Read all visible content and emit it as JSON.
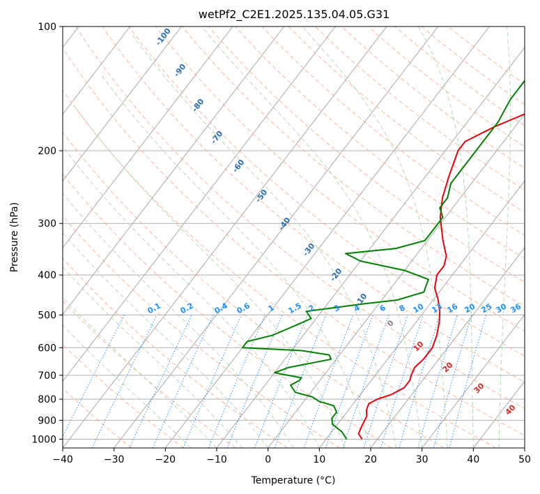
{
  "chart_data": {
    "type": "line",
    "title": "wetPf2_C2E1.2025.135.04.05.G31",
    "xlabel": "Temperature (°C)",
    "ylabel": "Pressure (hPa)",
    "xlim": [
      -40,
      50
    ],
    "ylim": [
      1050,
      100
    ],
    "y_scale": "log",
    "grid": true,
    "x_ticks": [
      -40,
      -30,
      -20,
      -10,
      0,
      10,
      20,
      30,
      40,
      50
    ],
    "y_ticks": [
      100,
      200,
      300,
      400,
      500,
      600,
      700,
      800,
      900,
      1000
    ],
    "series": [
      {
        "color": "#e8000b",
        "points": [
          [
            17,
            1000
          ],
          [
            15.5,
            970
          ],
          [
            15,
            930
          ],
          [
            14.5,
            880
          ],
          [
            13.5,
            850
          ],
          [
            13,
            820
          ],
          [
            14,
            800
          ],
          [
            16,
            780
          ],
          [
            17.5,
            750
          ],
          [
            17.5,
            720
          ],
          [
            17,
            700
          ],
          [
            16.5,
            670
          ],
          [
            17,
            640
          ],
          [
            17,
            600
          ],
          [
            16,
            560
          ],
          [
            14.5,
            520
          ],
          [
            13,
            490
          ],
          [
            11,
            460
          ],
          [
            8.5,
            430
          ],
          [
            7,
            400
          ],
          [
            7,
            380
          ],
          [
            6,
            360
          ],
          [
            3,
            330
          ],
          [
            -1,
            290
          ],
          [
            -3.5,
            260
          ],
          [
            -5.5,
            230
          ],
          [
            -7.5,
            200
          ],
          [
            -7.5,
            190
          ],
          [
            -4,
            175
          ],
          [
            1,
            160
          ],
          [
            6,
            145
          ],
          [
            11,
            130
          ],
          [
            14,
            120
          ],
          [
            16,
            110
          ],
          [
            18,
            100
          ]
        ]
      },
      {
        "color": "#008000",
        "points": [
          [
            14,
            1000
          ],
          [
            12,
            960
          ],
          [
            9,
            920
          ],
          [
            8,
            890
          ],
          [
            8,
            860
          ],
          [
            6.5,
            830
          ],
          [
            3,
            810
          ],
          [
            1,
            790
          ],
          [
            -3,
            770
          ],
          [
            -5,
            740
          ],
          [
            -4,
            720
          ],
          [
            -4,
            710
          ],
          [
            -10,
            690
          ],
          [
            -8,
            670
          ],
          [
            -1,
            640
          ],
          [
            -2,
            625
          ],
          [
            -8,
            610
          ],
          [
            -20,
            600
          ],
          [
            -20,
            580
          ],
          [
            -16,
            560
          ],
          [
            -13,
            530
          ],
          [
            -11,
            510
          ],
          [
            -13,
            490
          ],
          [
            -8,
            480
          ],
          [
            -3,
            470
          ],
          [
            3,
            460
          ],
          [
            7,
            440
          ],
          [
            6,
            410
          ],
          [
            0,
            390
          ],
          [
            -10,
            370
          ],
          [
            -14,
            355
          ],
          [
            -5,
            345
          ],
          [
            -0.5,
            330
          ],
          [
            -0.5,
            310
          ],
          [
            -0.5,
            290
          ],
          [
            -2.5,
            275
          ],
          [
            -2.5,
            260
          ],
          [
            -4,
            240
          ],
          [
            -4,
            220
          ],
          [
            -4,
            205
          ],
          [
            -4,
            190
          ],
          [
            -4,
            180
          ],
          [
            -4,
            170
          ],
          [
            -4.5,
            160
          ],
          [
            -5,
            150
          ],
          [
            -5,
            140
          ],
          [
            -5,
            130
          ],
          [
            -4,
            120
          ],
          [
            -1.5,
            110
          ],
          [
            0,
            100
          ]
        ]
      }
    ],
    "dry_adiabat_labels": [
      "-100",
      "-90",
      "-80",
      "-70",
      "-60",
      "-50",
      "-40",
      "-30",
      "-20",
      "-10"
    ],
    "mixing_ratio_labels": [
      "0.1",
      "0.2",
      "0.4",
      "0.6",
      "1",
      "1.5",
      "2",
      "3",
      "4",
      "6",
      "8",
      "10",
      "13",
      "16",
      "20",
      "25",
      "30",
      "36"
    ],
    "moist_adiabat_labels": [
      "0",
      "10",
      "20",
      "30",
      "40"
    ],
    "colors": {
      "temperature": "#e8000b",
      "dewpoint": "#008000",
      "dry_adiabat": "#2a6fb0",
      "mixing_ratio": "#1e90ff",
      "moist_adiabat": "#d62728"
    }
  }
}
